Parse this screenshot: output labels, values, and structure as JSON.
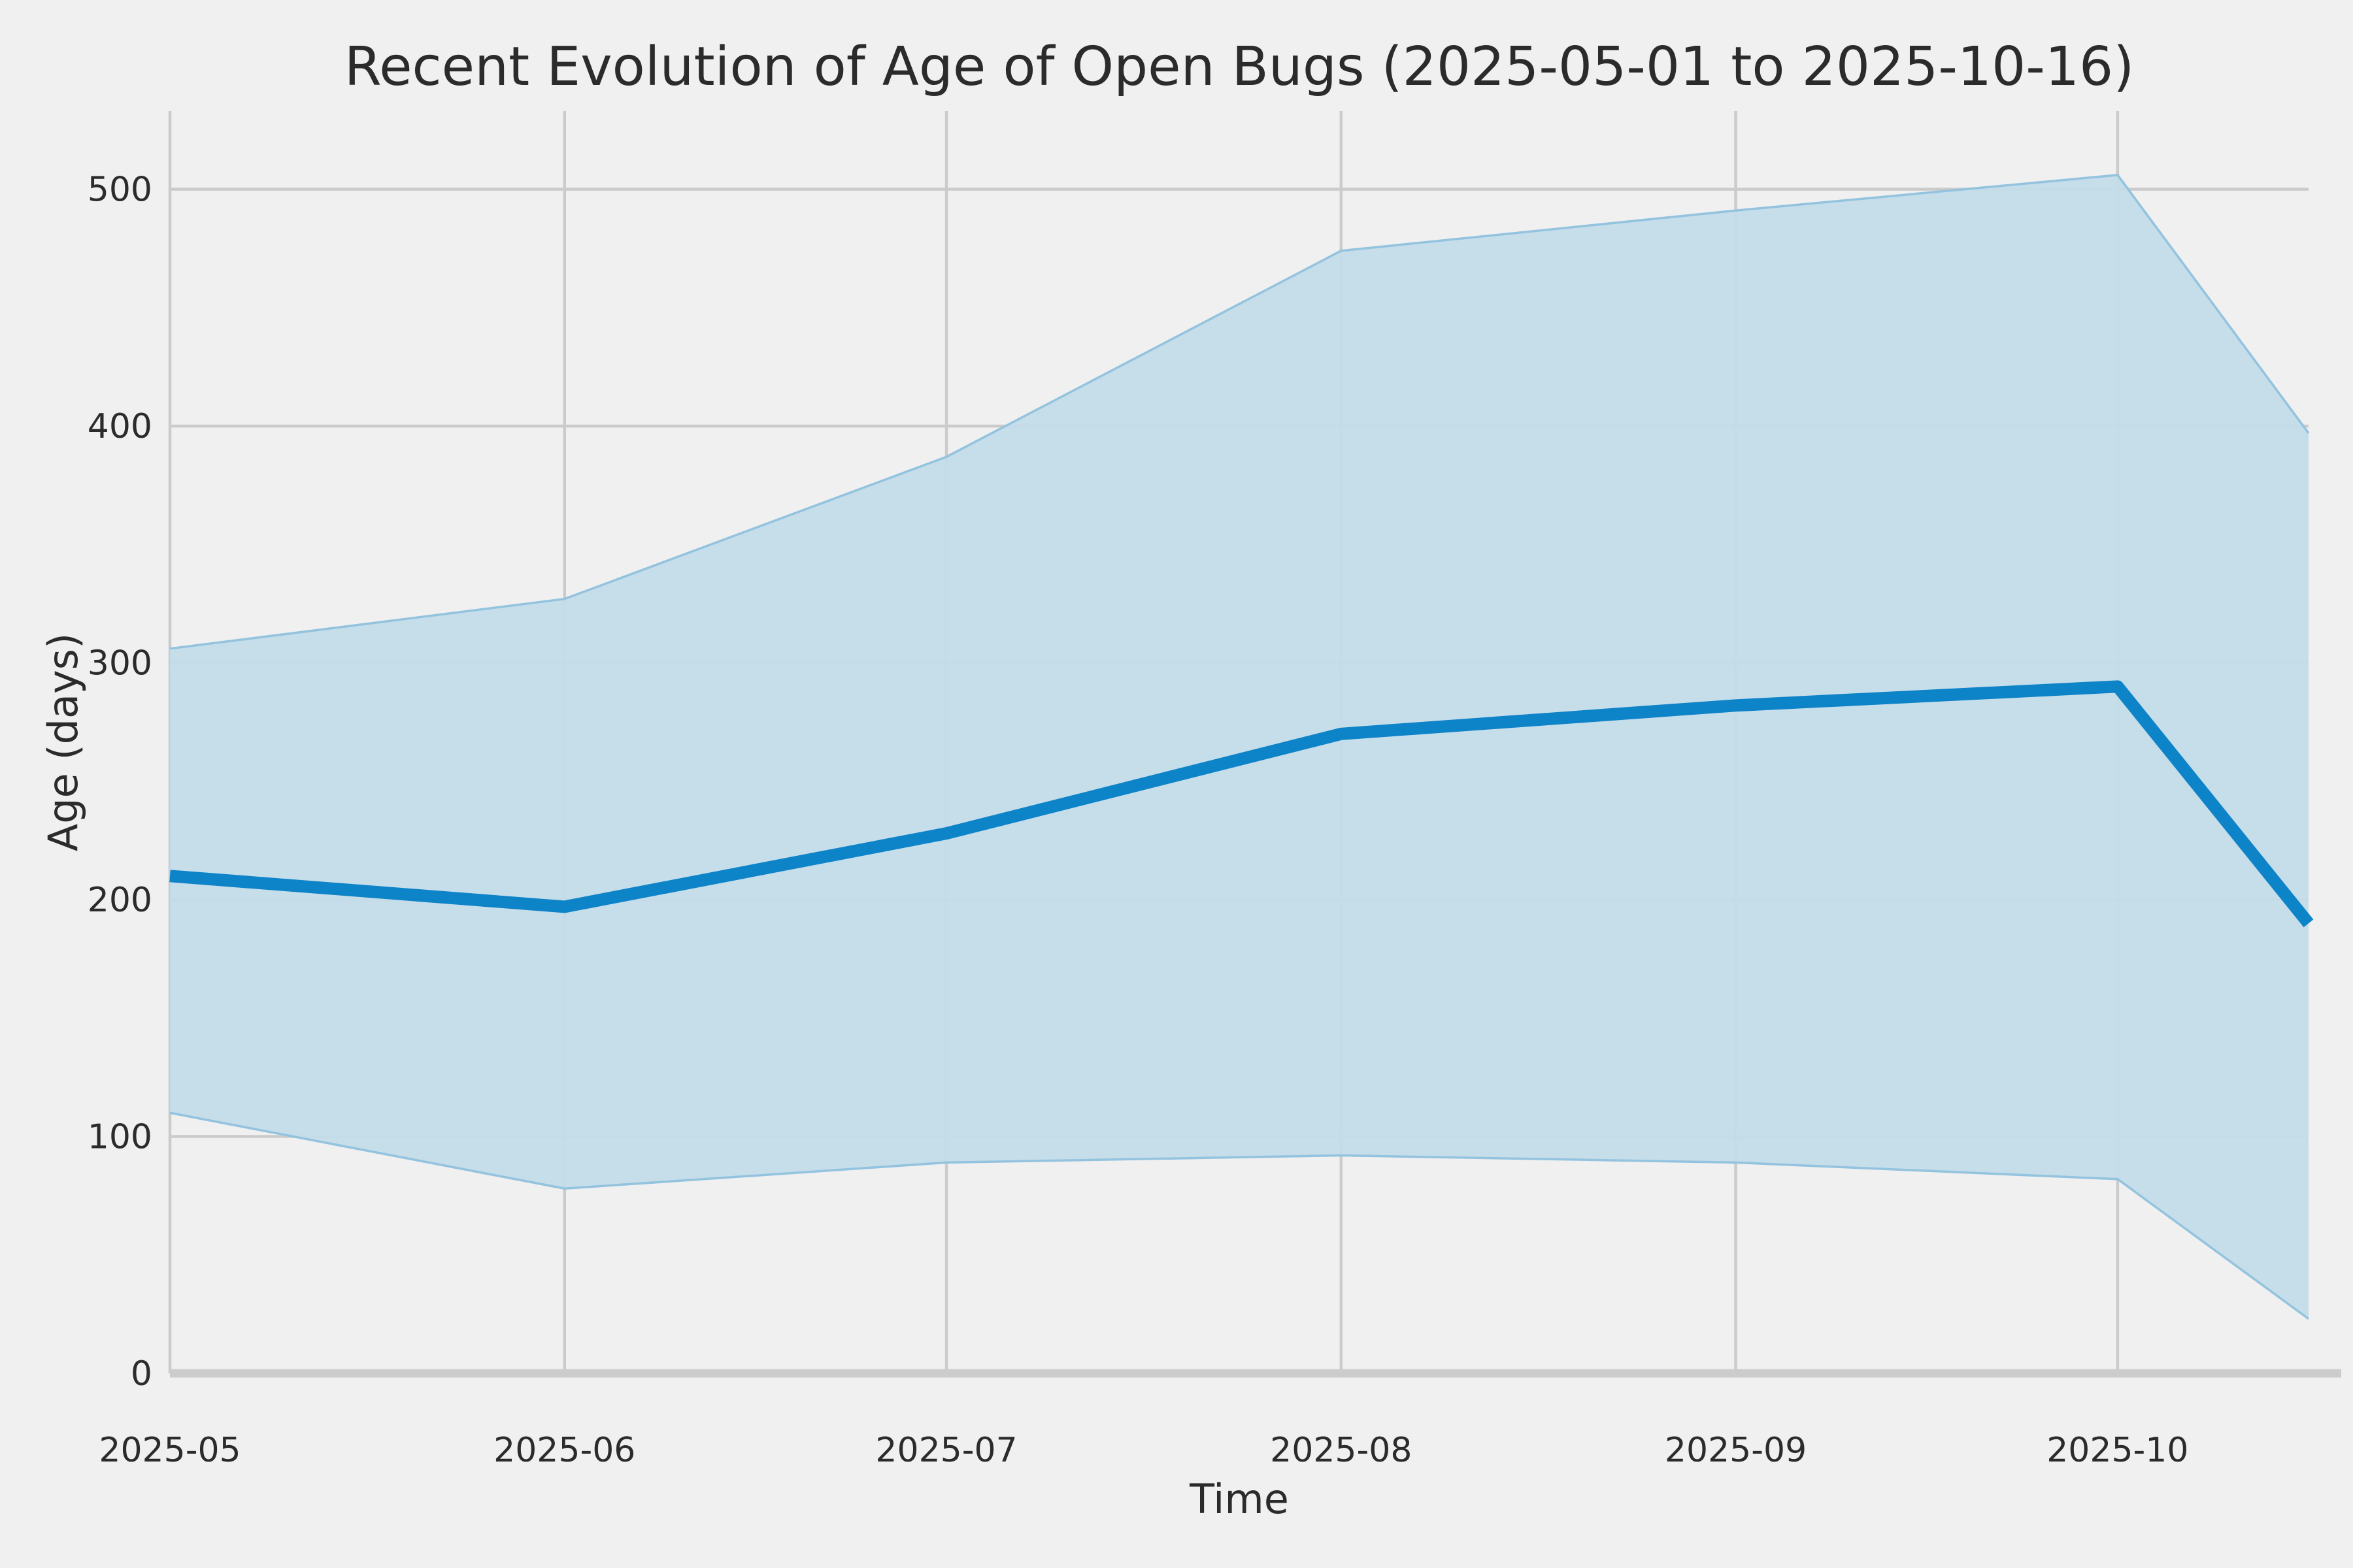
{
  "figure": {
    "title": "Recent Evolution of Age of Open Bugs (2025-05-01 to 2025-10-16)",
    "xlabel": "Time",
    "ylabel": "Age (days)"
  },
  "chart_data": {
    "type": "line",
    "title": "Recent Evolution of Age of Open Bugs (2025-05-01 to 2025-10-16)",
    "xlabel": "Time",
    "ylabel": "Age (days)",
    "x_dates": [
      "2025-05-01",
      "2025-06-01",
      "2025-07-01",
      "2025-08-01",
      "2025-09-01",
      "2025-10-01",
      "2025-10-16"
    ],
    "x_days": [
      0,
      31,
      61,
      92,
      123,
      153,
      168
    ],
    "series": [
      {
        "name": "mean_age_days",
        "role": "line",
        "values": [
          210,
          197,
          228,
          270,
          282,
          290,
          190
        ]
      },
      {
        "name": "band_upper_days",
        "role": "band-upper",
        "values": [
          306,
          327,
          387,
          474,
          491,
          506,
          397
        ]
      },
      {
        "name": "band_lower_days",
        "role": "band-lower",
        "values": [
          110,
          78,
          89,
          92,
          89,
          82,
          23
        ]
      }
    ],
    "xlim_days": [
      0,
      168
    ],
    "ylim": [
      0,
      533
    ],
    "yticks": [
      0,
      100,
      200,
      300,
      400,
      500
    ],
    "ytick_labels": [
      "0",
      "100",
      "200",
      "300",
      "400",
      "500"
    ],
    "xtick_days": [
      0,
      31,
      61,
      92,
      123,
      153
    ],
    "xtick_labels": [
      "2025-05",
      "2025-06",
      "2025-07",
      "2025-08",
      "2025-09",
      "2025-10"
    ],
    "grid": true,
    "legend": false,
    "colors": {
      "background": "#f0f0f0",
      "gridline": "#cbcbcb",
      "baseline": "#cccccc",
      "line": "#0d83c8",
      "band_fill": "#c3dbe9",
      "band_edge": "#93c3de",
      "text": "#2b2b2b"
    }
  }
}
